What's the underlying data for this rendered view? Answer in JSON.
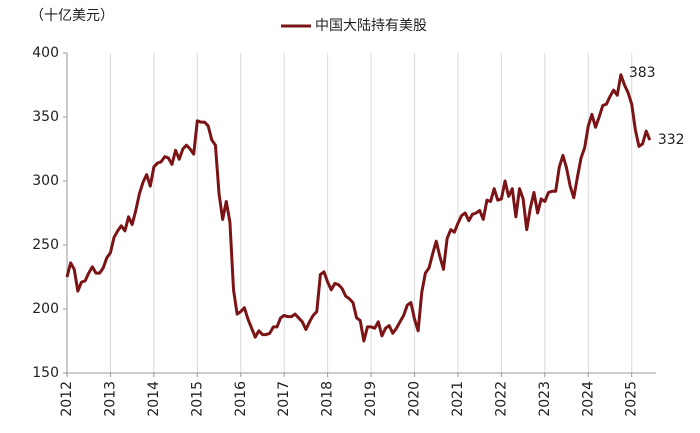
{
  "chart_data": {
    "type": "line",
    "y_axis_label": "（十亿美元）",
    "categories": [
      "2012",
      null,
      null,
      null,
      null,
      null,
      null,
      null,
      null,
      null,
      null,
      null,
      "2013",
      null,
      null,
      null,
      null,
      null,
      null,
      null,
      null,
      null,
      null,
      null,
      "2014",
      null,
      null,
      null,
      null,
      null,
      null,
      null,
      null,
      null,
      null,
      null,
      "2015",
      null,
      null,
      null,
      null,
      null,
      null,
      null,
      null,
      null,
      null,
      null,
      "2016",
      null,
      null,
      null,
      null,
      null,
      null,
      null,
      null,
      null,
      null,
      null,
      "2017",
      null,
      null,
      null,
      null,
      null,
      null,
      null,
      null,
      null,
      null,
      null,
      "2018",
      null,
      null,
      null,
      null,
      null,
      null,
      null,
      null,
      null,
      null,
      null,
      "2019",
      null,
      null,
      null,
      null,
      null,
      null,
      null,
      null,
      null,
      null,
      null,
      "2020",
      null,
      null,
      null,
      null,
      null,
      null,
      null,
      null,
      null,
      null,
      null,
      "2021",
      null,
      null,
      null,
      null,
      null,
      null,
      null,
      null,
      null,
      null,
      null,
      "2022",
      null,
      null,
      null,
      null,
      null,
      null,
      null,
      null,
      null,
      null,
      null,
      "2023",
      null,
      null,
      null,
      null,
      null,
      null,
      null,
      null,
      null,
      null,
      null,
      "2024",
      null,
      null,
      null,
      null,
      null,
      null,
      null,
      null,
      null,
      null,
      null,
      "2025",
      null,
      null,
      null,
      null,
      null
    ],
    "series": [
      {
        "name": "中国大陆持有美股",
        "color": "#7b1416",
        "values": [
          225,
          236,
          231,
          214,
          221,
          222,
          228,
          233,
          228,
          228,
          232,
          240,
          244,
          256,
          261,
          265,
          261,
          272,
          266,
          277,
          290,
          299,
          305,
          296,
          311,
          314,
          315,
          319,
          318,
          313,
          324,
          317,
          325,
          328,
          325,
          321,
          347,
          346,
          346,
          343,
          332,
          328,
          290,
          270,
          284,
          268,
          215,
          196,
          198,
          201,
          192,
          185,
          178,
          183,
          180,
          180,
          181,
          186,
          186,
          193,
          195,
          194,
          194,
          196,
          193,
          190,
          184,
          190,
          195,
          198,
          227,
          229,
          221,
          215,
          220,
          219,
          216,
          210,
          208,
          205,
          193,
          191,
          175,
          186,
          186,
          185,
          190,
          179,
          185,
          187,
          181,
          185,
          190,
          195,
          203,
          205,
          192,
          183,
          213,
          228,
          232,
          243,
          253,
          241,
          231,
          255,
          262,
          260,
          267,
          273,
          275,
          269,
          274,
          275,
          277,
          270,
          285,
          284,
          294,
          285,
          286,
          300,
          288,
          294,
          272,
          294,
          286,
          262,
          279,
          291,
          275,
          286,
          284,
          291,
          292,
          292,
          311,
          320,
          310,
          296,
          287,
          303,
          318,
          326,
          343,
          352,
          342,
          350,
          359,
          360,
          366,
          371,
          367,
          383,
          375,
          369,
          360,
          340,
          327,
          329,
          339,
          332
        ]
      }
    ],
    "ylim": [
      150,
      400
    ],
    "yticks": [
      150,
      200,
      250,
      300,
      350,
      400
    ],
    "grid": true
  }
}
